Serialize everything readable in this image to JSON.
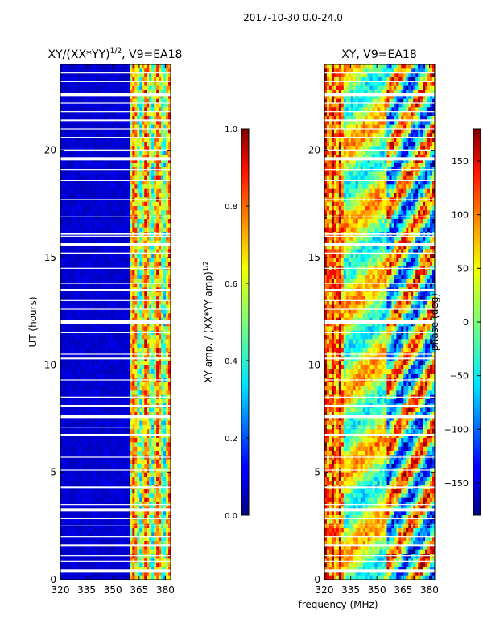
{
  "header": {
    "title": "2017-10-30 0.0-24.0"
  },
  "chart_data": [
    {
      "type": "heatmap",
      "title_main": "XY/(XX*YY)",
      "title_sup": "1/2",
      "title_suffix": ", V9=EA18",
      "xlabel": "",
      "ylabel": "UT (hours)",
      "xlim": [
        320,
        383
      ],
      "ylim": [
        0,
        24
      ],
      "xticks": [
        320,
        335,
        350,
        365,
        380
      ],
      "yticks": [
        0,
        5,
        10,
        15,
        20
      ],
      "colorbar": {
        "label_main": "XY amp. / (XX*YY amp)",
        "label_sup": "1/2",
        "range": [
          0.0,
          1.0
        ],
        "ticks": [
          "0.0",
          "0.2",
          "0.4",
          "0.6",
          "0.8",
          "1.0"
        ]
      }
    },
    {
      "type": "heatmap",
      "title": "XY, V9=EA18",
      "xlabel": "frequency (MHz)",
      "ylabel": "",
      "xlim": [
        320,
        383
      ],
      "ylim": [
        0,
        24
      ],
      "xticks": [
        320,
        335,
        350,
        365,
        380
      ],
      "yticks": [
        0,
        5,
        10,
        15,
        20
      ],
      "colorbar": {
        "label": "phase (deg)",
        "range": [
          -180,
          180
        ],
        "ticks": [
          "150",
          "100",
          "50",
          "0",
          "−50",
          "−100",
          "−150"
        ]
      }
    }
  ]
}
